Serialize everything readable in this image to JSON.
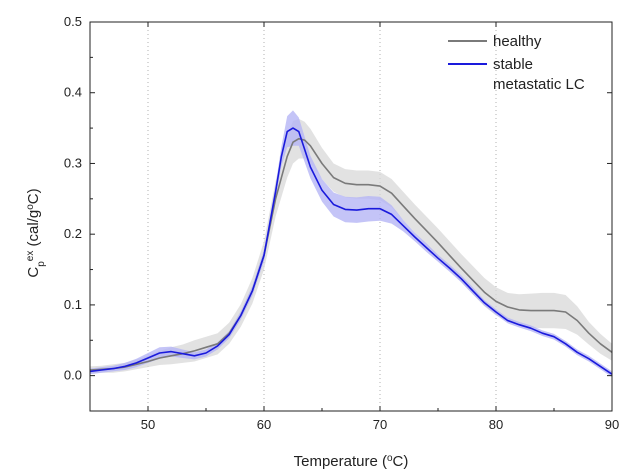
{
  "chart_data": {
    "type": "line",
    "title": "",
    "xlabel": {
      "main": "Temperature (",
      "sup": "o",
      "end": "C)"
    },
    "ylabel": {
      "c": "C",
      "sub": "p",
      "sup": "ex",
      "rest": " (cal/g",
      "sup2": "o",
      "end": "C)"
    },
    "xlim": [
      45,
      90
    ],
    "ylim": [
      -0.05,
      0.5
    ],
    "x_ticks": [
      50,
      60,
      70,
      80,
      90
    ],
    "x_tick_labels": [
      "50",
      "60",
      "70",
      "80",
      "90"
    ],
    "y_ticks": [
      0.0,
      0.1,
      0.2,
      0.3,
      0.4,
      0.5
    ],
    "y_tick_labels": [
      "0.0",
      "0.1",
      "0.2",
      "0.3",
      "0.4",
      "0.5"
    ],
    "grid": {
      "x": "dotted vertical at major ticks",
      "y": "off"
    },
    "legend": {
      "position": "top-right"
    },
    "series": [
      {
        "name": "healthy",
        "color": "#7a7a7a",
        "band_color": "#d8d8d8",
        "x": [
          45,
          46,
          47,
          48,
          49,
          50,
          51,
          52,
          53,
          54,
          55,
          56,
          57,
          58,
          59,
          60,
          61,
          62,
          62.5,
          63,
          63.5,
          64,
          65,
          66,
          67,
          68,
          69,
          70,
          71,
          72,
          73,
          74,
          75,
          76,
          77,
          78,
          79,
          80,
          81,
          82,
          83,
          84,
          85,
          86,
          87,
          88,
          89,
          90
        ],
        "y": [
          0.008,
          0.009,
          0.01,
          0.012,
          0.016,
          0.02,
          0.025,
          0.028,
          0.031,
          0.035,
          0.04,
          0.045,
          0.06,
          0.085,
          0.12,
          0.17,
          0.25,
          0.31,
          0.33,
          0.335,
          0.333,
          0.325,
          0.3,
          0.28,
          0.272,
          0.27,
          0.27,
          0.268,
          0.258,
          0.24,
          0.222,
          0.205,
          0.188,
          0.17,
          0.152,
          0.135,
          0.118,
          0.105,
          0.097,
          0.093,
          0.092,
          0.092,
          0.092,
          0.09,
          0.078,
          0.06,
          0.045,
          0.033
        ],
        "err": [
          0.005,
          0.005,
          0.006,
          0.006,
          0.007,
          0.008,
          0.01,
          0.012,
          0.013,
          0.015,
          0.015,
          0.015,
          0.015,
          0.016,
          0.018,
          0.02,
          0.025,
          0.03,
          0.03,
          0.028,
          0.026,
          0.024,
          0.022,
          0.02,
          0.02,
          0.02,
          0.02,
          0.02,
          0.02,
          0.02,
          0.02,
          0.02,
          0.02,
          0.02,
          0.02,
          0.02,
          0.02,
          0.02,
          0.02,
          0.022,
          0.024,
          0.025,
          0.025,
          0.024,
          0.02,
          0.016,
          0.014,
          0.012
        ]
      },
      {
        "name": "stable\nmetastatic LC",
        "color": "#1a1adc",
        "band_color": "#b5b5f5",
        "x": [
          45,
          46,
          47,
          48,
          49,
          50,
          51,
          52,
          53,
          54,
          55,
          56,
          57,
          58,
          59,
          60,
          61,
          61.5,
          62,
          62.5,
          63,
          63.5,
          64,
          65,
          66,
          67,
          68,
          69,
          70,
          71,
          72,
          73,
          74,
          75,
          76,
          77,
          78,
          79,
          80,
          81,
          82,
          83,
          84,
          85,
          86,
          87,
          88,
          89,
          90
        ],
        "y": [
          0.006,
          0.008,
          0.01,
          0.013,
          0.018,
          0.025,
          0.032,
          0.034,
          0.031,
          0.028,
          0.032,
          0.042,
          0.058,
          0.085,
          0.12,
          0.17,
          0.26,
          0.31,
          0.345,
          0.35,
          0.345,
          0.32,
          0.295,
          0.262,
          0.242,
          0.235,
          0.234,
          0.236,
          0.236,
          0.228,
          0.212,
          0.196,
          0.181,
          0.166,
          0.152,
          0.137,
          0.12,
          0.103,
          0.09,
          0.078,
          0.072,
          0.067,
          0.06,
          0.055,
          0.045,
          0.033,
          0.024,
          0.013,
          0.002
        ],
        "err": [
          0.004,
          0.004,
          0.004,
          0.005,
          0.006,
          0.007,
          0.008,
          0.007,
          0.006,
          0.005,
          0.005,
          0.005,
          0.005,
          0.006,
          0.007,
          0.008,
          0.01,
          0.014,
          0.022,
          0.025,
          0.02,
          0.018,
          0.016,
          0.016,
          0.017,
          0.018,
          0.018,
          0.018,
          0.017,
          0.013,
          0.008,
          0.006,
          0.006,
          0.005,
          0.005,
          0.005,
          0.005,
          0.004,
          0.004,
          0.004,
          0.004,
          0.004,
          0.004,
          0.004,
          0.004,
          0.004,
          0.004,
          0.004,
          0.004
        ]
      }
    ]
  }
}
